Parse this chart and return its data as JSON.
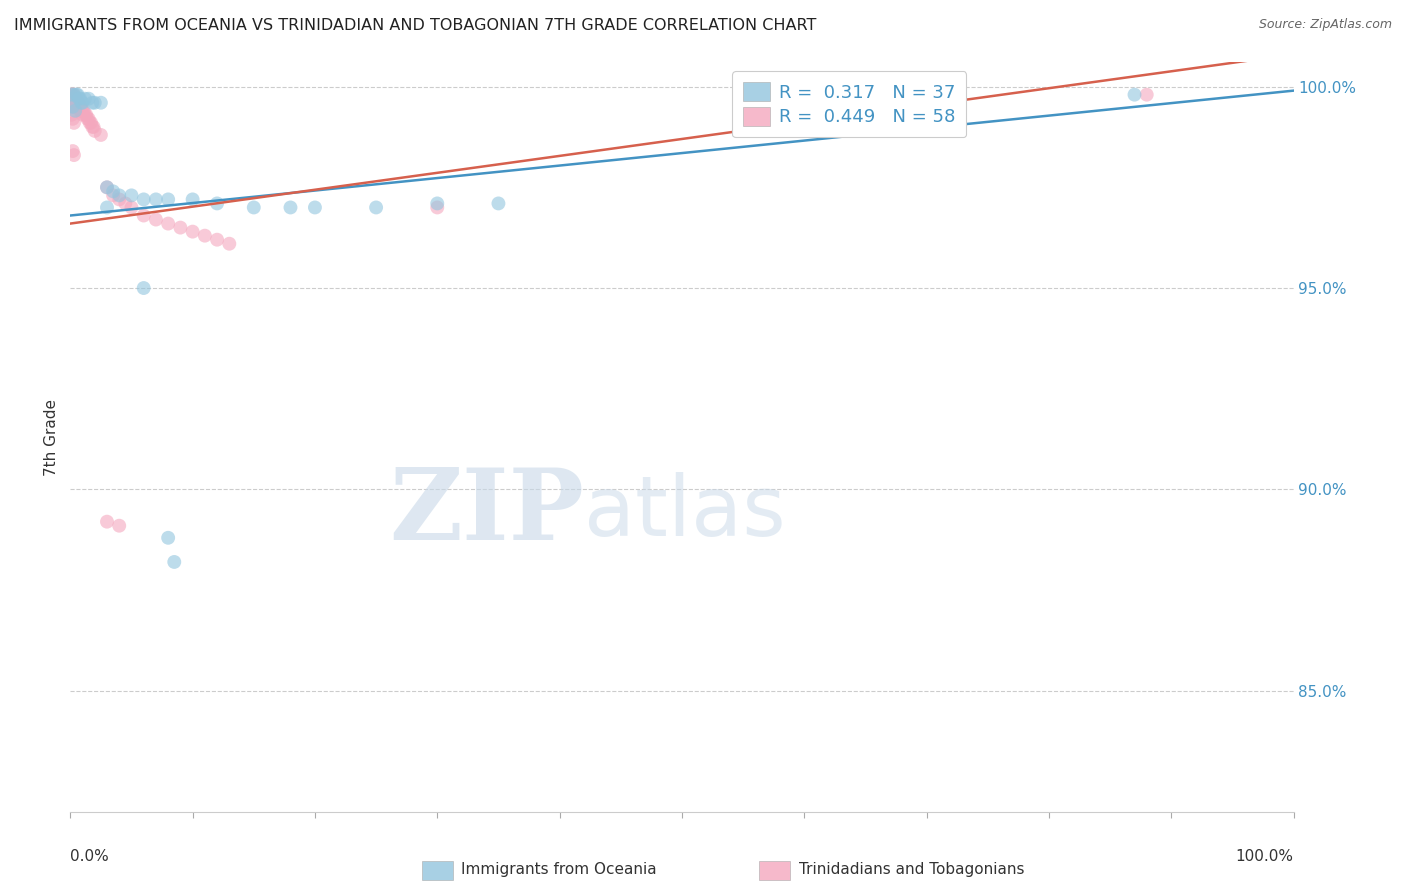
{
  "title": "IMMIGRANTS FROM OCEANIA VS TRINIDADIAN AND TOBAGONIAN 7TH GRADE CORRELATION CHART",
  "source": "Source: ZipAtlas.com",
  "ylabel": "7th Grade",
  "legend1_r": "0.317",
  "legend1_n": "37",
  "legend2_r": "0.449",
  "legend2_n": "58",
  "blue_color": "#92c5de",
  "pink_color": "#f4a8be",
  "blue_line_color": "#4393c3",
  "pink_line_color": "#d6604d",
  "blue_points": [
    [
      0.001,
      0.998
    ],
    [
      0.003,
      0.998
    ],
    [
      0.005,
      0.998
    ],
    [
      0.006,
      0.998
    ],
    [
      0.007,
      0.997
    ],
    [
      0.008,
      0.997
    ],
    [
      0.009,
      0.996
    ],
    [
      0.01,
      0.996
    ],
    [
      0.012,
      0.997
    ],
    [
      0.015,
      0.997
    ],
    [
      0.018,
      0.996
    ],
    [
      0.02,
      0.996
    ],
    [
      0.025,
      0.996
    ],
    [
      0.03,
      0.975
    ],
    [
      0.035,
      0.974
    ],
    [
      0.04,
      0.973
    ],
    [
      0.05,
      0.973
    ],
    [
      0.06,
      0.972
    ],
    [
      0.07,
      0.972
    ],
    [
      0.08,
      0.972
    ],
    [
      0.1,
      0.972
    ],
    [
      0.12,
      0.971
    ],
    [
      0.15,
      0.97
    ],
    [
      0.18,
      0.97
    ],
    [
      0.2,
      0.97
    ],
    [
      0.25,
      0.97
    ],
    [
      0.3,
      0.971
    ],
    [
      0.35,
      0.971
    ],
    [
      0.03,
      0.97
    ],
    [
      0.65,
      0.999
    ],
    [
      0.7,
      0.999
    ],
    [
      0.87,
      0.998
    ],
    [
      0.06,
      0.95
    ],
    [
      0.08,
      0.888
    ],
    [
      0.085,
      0.882
    ],
    [
      0.002,
      0.995
    ],
    [
      0.004,
      0.994
    ]
  ],
  "pink_points": [
    [
      0.001,
      0.998
    ],
    [
      0.001,
      0.997
    ],
    [
      0.001,
      0.996
    ],
    [
      0.002,
      0.998
    ],
    [
      0.002,
      0.997
    ],
    [
      0.002,
      0.996
    ],
    [
      0.002,
      0.995
    ],
    [
      0.003,
      0.998
    ],
    [
      0.003,
      0.997
    ],
    [
      0.003,
      0.996
    ],
    [
      0.003,
      0.995
    ],
    [
      0.004,
      0.997
    ],
    [
      0.004,
      0.996
    ],
    [
      0.005,
      0.997
    ],
    [
      0.005,
      0.996
    ],
    [
      0.006,
      0.996
    ],
    [
      0.006,
      0.995
    ],
    [
      0.007,
      0.996
    ],
    [
      0.007,
      0.995
    ],
    [
      0.008,
      0.995
    ],
    [
      0.008,
      0.994
    ],
    [
      0.009,
      0.995
    ],
    [
      0.009,
      0.994
    ],
    [
      0.01,
      0.994
    ],
    [
      0.01,
      0.993
    ],
    [
      0.011,
      0.994
    ],
    [
      0.012,
      0.993
    ],
    [
      0.013,
      0.993
    ],
    [
      0.014,
      0.992
    ],
    [
      0.015,
      0.992
    ],
    [
      0.016,
      0.991
    ],
    [
      0.017,
      0.991
    ],
    [
      0.018,
      0.99
    ],
    [
      0.019,
      0.99
    ],
    [
      0.02,
      0.989
    ],
    [
      0.025,
      0.988
    ],
    [
      0.03,
      0.975
    ],
    [
      0.035,
      0.973
    ],
    [
      0.04,
      0.972
    ],
    [
      0.045,
      0.971
    ],
    [
      0.05,
      0.97
    ],
    [
      0.06,
      0.968
    ],
    [
      0.07,
      0.967
    ],
    [
      0.08,
      0.966
    ],
    [
      0.09,
      0.965
    ],
    [
      0.1,
      0.964
    ],
    [
      0.11,
      0.963
    ],
    [
      0.12,
      0.962
    ],
    [
      0.13,
      0.961
    ],
    [
      0.001,
      0.993
    ],
    [
      0.002,
      0.992
    ],
    [
      0.003,
      0.991
    ],
    [
      0.002,
      0.984
    ],
    [
      0.003,
      0.983
    ],
    [
      0.03,
      0.892
    ],
    [
      0.04,
      0.891
    ],
    [
      0.88,
      0.998
    ],
    [
      0.3,
      0.97
    ]
  ],
  "xlim": [
    0.0,
    1.0
  ],
  "ylim": [
    0.82,
    1.006
  ],
  "yticks": [
    0.85,
    0.9,
    0.95,
    1.0
  ],
  "ytick_labels": [
    "85.0%",
    "90.0%",
    "95.0%",
    "100.0%"
  ]
}
